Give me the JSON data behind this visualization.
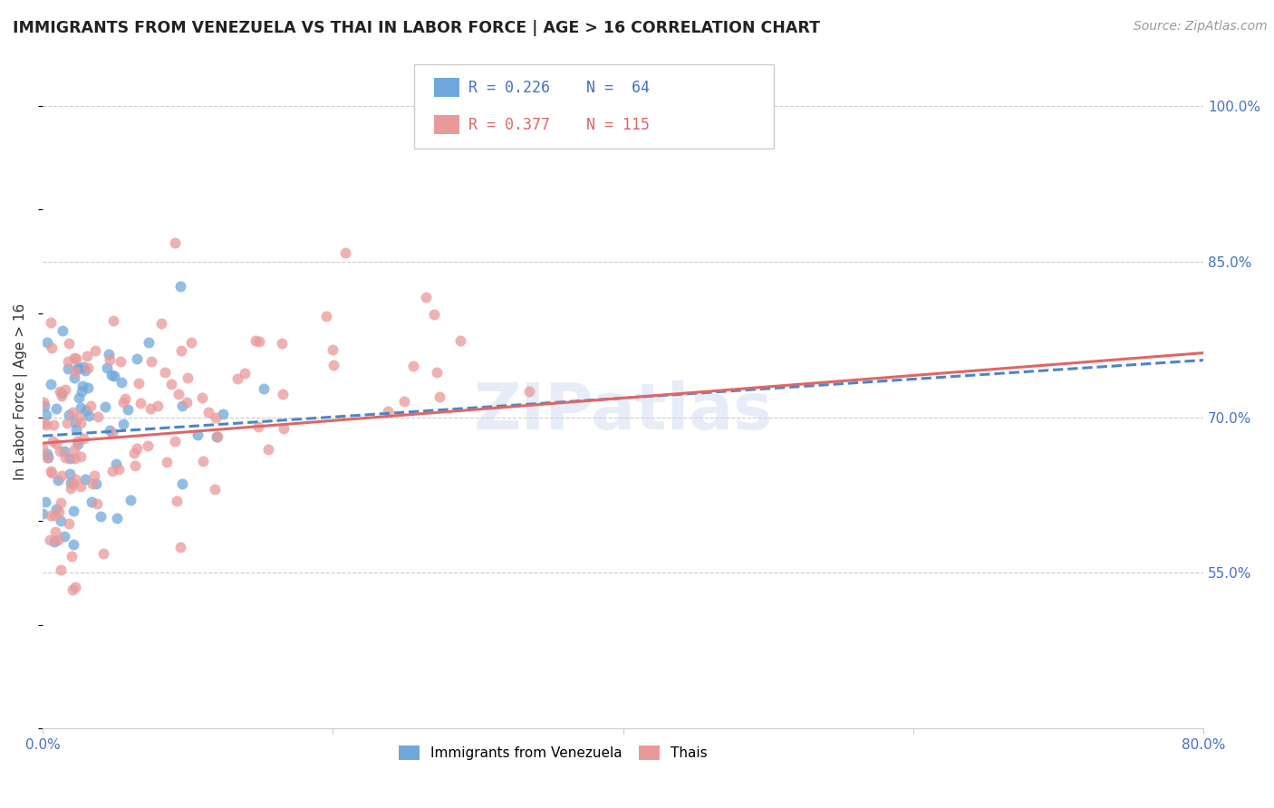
{
  "title": "IMMIGRANTS FROM VENEZUELA VS THAI IN LABOR FORCE | AGE > 16 CORRELATION CHART",
  "source": "Source: ZipAtlas.com",
  "ylabel": "In Labor Force | Age > 16",
  "xlim": [
    0.0,
    0.8
  ],
  "ylim": [
    0.4,
    1.05
  ],
  "yticks": [
    0.55,
    0.7,
    0.85,
    1.0
  ],
  "ytick_labels": [
    "55.0%",
    "70.0%",
    "85.0%",
    "100.0%"
  ],
  "r_venezuela": 0.226,
  "n_venezuela": 64,
  "r_thai": 0.377,
  "n_thai": 115,
  "color_venezuela": "#6fa8dc",
  "color_thai": "#ea9999",
  "trend_color_venezuela": "#4a86c8",
  "trend_color_thai": "#e06666",
  "background_color": "#ffffff",
  "watermark": "ZIPatlas",
  "legend_r1": "R = 0.226",
  "legend_n1": "N =  64",
  "legend_r2": "R = 0.377",
  "legend_n2": "N = 115",
  "label_venezuela": "Immigrants from Venezuela",
  "label_thai": "Thais"
}
